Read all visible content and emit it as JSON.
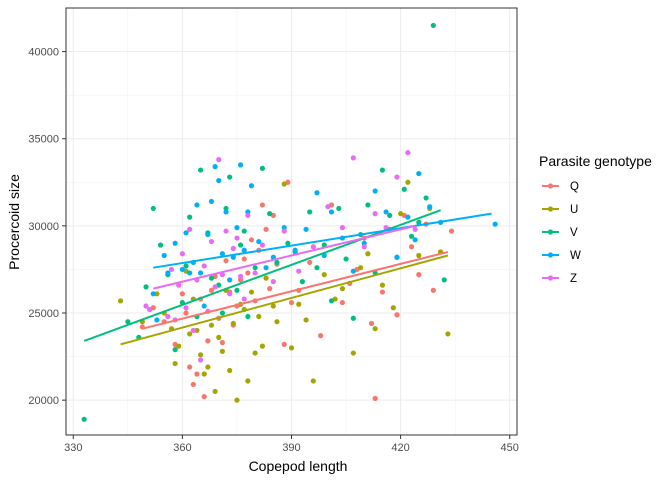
{
  "chart_data": {
    "type": "scatter",
    "xlabel": "Copepod length",
    "ylabel": "Procercoid size",
    "xlim": [
      328,
      452
    ],
    "ylim": [
      18000,
      42500
    ],
    "xticks": [
      330,
      360,
      390,
      420,
      450
    ],
    "yticks": [
      20000,
      25000,
      30000,
      35000,
      40000
    ],
    "grid": true,
    "legend": {
      "title": "Parasite genotype",
      "position": "right"
    },
    "series": [
      {
        "name": "Q",
        "color": "#F8766D",
        "trend": [
          [
            349,
            24100
          ],
          [
            433,
            28500
          ]
        ],
        "points": [
          [
            349,
            24200
          ],
          [
            352,
            25300
          ],
          [
            355,
            24500
          ],
          [
            358,
            23200
          ],
          [
            360,
            26100
          ],
          [
            361,
            25000
          ],
          [
            362,
            21900
          ],
          [
            363,
            20900
          ],
          [
            364,
            21500
          ],
          [
            365,
            25800
          ],
          [
            366,
            20200
          ],
          [
            367,
            23400
          ],
          [
            368,
            26300
          ],
          [
            369,
            27100
          ],
          [
            370,
            24700
          ],
          [
            371,
            23300
          ],
          [
            372,
            28000
          ],
          [
            373,
            26200
          ],
          [
            374,
            24300
          ],
          [
            375,
            25400
          ],
          [
            376,
            26900
          ],
          [
            377,
            28100
          ],
          [
            378,
            27300
          ],
          [
            379,
            29200
          ],
          [
            380,
            25700
          ],
          [
            381,
            28600
          ],
          [
            382,
            31200
          ],
          [
            383,
            29800
          ],
          [
            384,
            26400
          ],
          [
            385,
            30600
          ],
          [
            386,
            27800
          ],
          [
            388,
            23200
          ],
          [
            389,
            32500
          ],
          [
            390,
            25600
          ],
          [
            392,
            26300
          ],
          [
            395,
            27900
          ],
          [
            398,
            23700
          ],
          [
            401,
            31200
          ],
          [
            404,
            25600
          ],
          [
            406,
            26700
          ],
          [
            408,
            27500
          ],
          [
            410,
            29300
          ],
          [
            412,
            24400
          ],
          [
            413,
            20100
          ],
          [
            415,
            26200
          ],
          [
            417,
            29800
          ],
          [
            419,
            24900
          ],
          [
            421,
            30600
          ],
          [
            423,
            28800
          ],
          [
            425,
            27200
          ],
          [
            427,
            30100
          ],
          [
            429,
            26300
          ],
          [
            431,
            28500
          ],
          [
            434,
            29700
          ]
        ]
      },
      {
        "name": "U",
        "color": "#A3A500",
        "trend": [
          [
            343,
            23200
          ],
          [
            433,
            28300
          ]
        ],
        "points": [
          [
            343,
            25700
          ],
          [
            349,
            24500
          ],
          [
            353,
            26100
          ],
          [
            355,
            25000
          ],
          [
            357,
            24100
          ],
          [
            358,
            22100
          ],
          [
            359,
            23100
          ],
          [
            361,
            27400
          ],
          [
            362,
            23800
          ],
          [
            363,
            25800
          ],
          [
            364,
            24000
          ],
          [
            365,
            22600
          ],
          [
            366,
            21500
          ],
          [
            367,
            21900
          ],
          [
            368,
            24300
          ],
          [
            369,
            20500
          ],
          [
            370,
            23600
          ],
          [
            371,
            22800
          ],
          [
            372,
            26300
          ],
          [
            373,
            21700
          ],
          [
            374,
            24400
          ],
          [
            375,
            20000
          ],
          [
            376,
            25500
          ],
          [
            377,
            25200
          ],
          [
            378,
            21100
          ],
          [
            379,
            26200
          ],
          [
            380,
            22700
          ],
          [
            381,
            24800
          ],
          [
            382,
            23100
          ],
          [
            383,
            27000
          ],
          [
            385,
            25400
          ],
          [
            386,
            24500
          ],
          [
            388,
            32400
          ],
          [
            390,
            23000
          ],
          [
            392,
            25500
          ],
          [
            394,
            24600
          ],
          [
            396,
            21100
          ],
          [
            399,
            27200
          ],
          [
            402,
            25800
          ],
          [
            404,
            26400
          ],
          [
            407,
            22700
          ],
          [
            409,
            27600
          ],
          [
            411,
            28400
          ],
          [
            413,
            24100
          ],
          [
            415,
            26600
          ],
          [
            418,
            25300
          ],
          [
            420,
            30700
          ],
          [
            422,
            32500
          ],
          [
            425,
            28300
          ],
          [
            428,
            31000
          ],
          [
            431,
            28500
          ],
          [
            433,
            23800
          ]
        ]
      },
      {
        "name": "V",
        "color": "#00BF7D",
        "trend": [
          [
            333,
            23400
          ],
          [
            431,
            30900
          ]
        ],
        "points": [
          [
            333,
            18900
          ],
          [
            345,
            24500
          ],
          [
            348,
            23600
          ],
          [
            350,
            26500
          ],
          [
            352,
            31000
          ],
          [
            354,
            28900
          ],
          [
            356,
            27200
          ],
          [
            358,
            22900
          ],
          [
            360,
            25600
          ],
          [
            361,
            27700
          ],
          [
            362,
            30500
          ],
          [
            364,
            24800
          ],
          [
            365,
            33200
          ],
          [
            367,
            29600
          ],
          [
            368,
            27000
          ],
          [
            370,
            26600
          ],
          [
            371,
            25000
          ],
          [
            372,
            31000
          ],
          [
            373,
            32800
          ],
          [
            375,
            26300
          ],
          [
            376,
            28900
          ],
          [
            377,
            29700
          ],
          [
            378,
            24800
          ],
          [
            380,
            27600
          ],
          [
            382,
            33300
          ],
          [
            384,
            30700
          ],
          [
            386,
            27900
          ],
          [
            389,
            29000
          ],
          [
            391,
            28500
          ],
          [
            393,
            26800
          ],
          [
            395,
            30800
          ],
          [
            397,
            27600
          ],
          [
            399,
            28900
          ],
          [
            401,
            25700
          ],
          [
            403,
            31000
          ],
          [
            405,
            28100
          ],
          [
            407,
            24700
          ],
          [
            409,
            29500
          ],
          [
            411,
            31200
          ],
          [
            413,
            27300
          ],
          [
            415,
            33200
          ],
          [
            417,
            30600
          ],
          [
            419,
            28200
          ],
          [
            421,
            32100
          ],
          [
            423,
            29400
          ],
          [
            425,
            30200
          ],
          [
            427,
            31600
          ],
          [
            429,
            41500
          ],
          [
            432,
            26900
          ]
        ]
      },
      {
        "name": "W",
        "color": "#00B0F6",
        "trend": [
          [
            352,
            27600
          ],
          [
            445,
            30700
          ]
        ],
        "points": [
          [
            352,
            26100
          ],
          [
            353,
            24600
          ],
          [
            355,
            28300
          ],
          [
            356,
            27300
          ],
          [
            358,
            29000
          ],
          [
            360,
            27500
          ],
          [
            361,
            29600
          ],
          [
            362,
            27300
          ],
          [
            363,
            27900
          ],
          [
            364,
            31200
          ],
          [
            365,
            27300
          ],
          [
            366,
            25400
          ],
          [
            367,
            29500
          ],
          [
            368,
            31400
          ],
          [
            369,
            33400
          ],
          [
            370,
            32600
          ],
          [
            371,
            28400
          ],
          [
            372,
            30800
          ],
          [
            373,
            26900
          ],
          [
            374,
            28200
          ],
          [
            375,
            29900
          ],
          [
            376,
            33500
          ],
          [
            377,
            28600
          ],
          [
            378,
            30800
          ],
          [
            379,
            32300
          ],
          [
            381,
            29100
          ],
          [
            383,
            27600
          ],
          [
            385,
            28200
          ],
          [
            388,
            29900
          ],
          [
            391,
            28600
          ],
          [
            394,
            29800
          ],
          [
            397,
            31900
          ],
          [
            399,
            28300
          ],
          [
            401,
            30800
          ],
          [
            404,
            29300
          ],
          [
            407,
            27400
          ],
          [
            410,
            29000
          ],
          [
            413,
            32000
          ],
          [
            416,
            30800
          ],
          [
            419,
            28200
          ],
          [
            422,
            30500
          ],
          [
            424,
            29200
          ],
          [
            425,
            33000
          ],
          [
            428,
            31100
          ],
          [
            431,
            30200
          ],
          [
            446,
            30100
          ]
        ]
      },
      {
        "name": "Z",
        "color": "#E76BF3",
        "trend": [
          [
            352,
            26400
          ],
          [
            424,
            30000
          ]
        ],
        "points": [
          [
            350,
            25400
          ],
          [
            351,
            25200
          ],
          [
            356,
            24800
          ],
          [
            357,
            27500
          ],
          [
            358,
            24600
          ],
          [
            359,
            26600
          ],
          [
            360,
            28400
          ],
          [
            361,
            25300
          ],
          [
            362,
            29800
          ],
          [
            363,
            24000
          ],
          [
            364,
            26900
          ],
          [
            365,
            22300
          ],
          [
            366,
            27700
          ],
          [
            367,
            25100
          ],
          [
            368,
            29100
          ],
          [
            369,
            26500
          ],
          [
            370,
            33800
          ],
          [
            371,
            27200
          ],
          [
            372,
            29700
          ],
          [
            373,
            26100
          ],
          [
            374,
            28700
          ],
          [
            375,
            29300
          ],
          [
            376,
            27100
          ],
          [
            377,
            25800
          ],
          [
            378,
            30600
          ],
          [
            380,
            27300
          ],
          [
            382,
            28900
          ],
          [
            385,
            26800
          ],
          [
            388,
            29700
          ],
          [
            392,
            27400
          ],
          [
            396,
            28800
          ],
          [
            400,
            31100
          ],
          [
            404,
            29900
          ],
          [
            407,
            33900
          ],
          [
            410,
            28800
          ],
          [
            413,
            30700
          ],
          [
            416,
            29900
          ],
          [
            419,
            32800
          ],
          [
            422,
            34200
          ],
          [
            424,
            29800
          ]
        ]
      }
    ]
  }
}
